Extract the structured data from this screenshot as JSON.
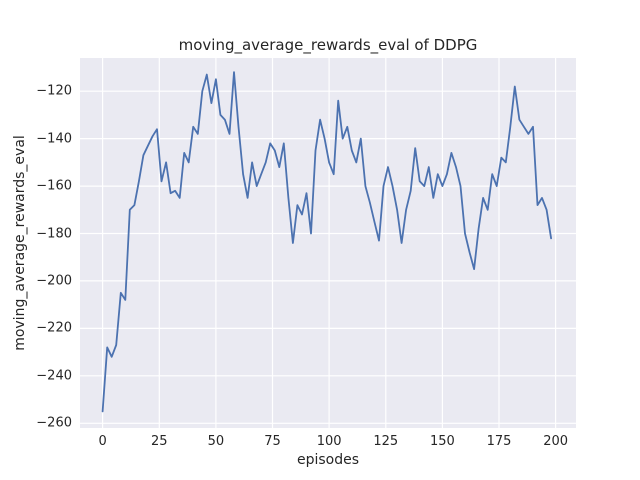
{
  "chart_data": {
    "type": "line",
    "title": "moving_average_rewards_eval of DDPG",
    "xlabel": "episodes",
    "ylabel": "moving_average_rewards_eval",
    "xlim": [
      -10,
      209
    ],
    "ylim": [
      -262,
      -106
    ],
    "xticks": [
      0,
      25,
      50,
      75,
      100,
      125,
      150,
      175,
      200
    ],
    "yticks": [
      -260,
      -240,
      -220,
      -200,
      -180,
      -160,
      -140,
      -120
    ],
    "grid": true,
    "legend": false,
    "style": "seaborn-darkgrid",
    "line_color": "#4c72b0",
    "plot_background_color": "#eaeaf2",
    "grid_color": "#ffffff",
    "text_color": "#262626",
    "series": [
      {
        "name": "moving_average_rewards_eval",
        "x": [
          0,
          2,
          4,
          6,
          8,
          10,
          12,
          14,
          16,
          18,
          20,
          22,
          24,
          26,
          28,
          30,
          32,
          34,
          36,
          38,
          40,
          42,
          44,
          46,
          48,
          50,
          52,
          54,
          56,
          58,
          60,
          62,
          64,
          66,
          68,
          70,
          72,
          74,
          76,
          78,
          80,
          82,
          84,
          86,
          88,
          90,
          92,
          94,
          96,
          98,
          100,
          102,
          104,
          106,
          108,
          110,
          112,
          114,
          116,
          118,
          120,
          122,
          124,
          126,
          128,
          130,
          132,
          134,
          136,
          138,
          140,
          142,
          144,
          146,
          148,
          150,
          152,
          154,
          156,
          158,
          160,
          162,
          164,
          166,
          168,
          170,
          172,
          174,
          176,
          178,
          180,
          182,
          184,
          186,
          188,
          190,
          192,
          194,
          196,
          198
        ],
        "y": [
          -255,
          -228,
          -232,
          -227,
          -205,
          -208,
          -170,
          -168,
          -158,
          -147,
          -143,
          -139,
          -136,
          -158,
          -150,
          -163,
          -162,
          -165,
          -146,
          -150,
          -135,
          -138,
          -120,
          -113,
          -125,
          -115,
          -130,
          -132,
          -138,
          -112,
          -135,
          -155,
          -165,
          -150,
          -160,
          -155,
          -150,
          -142,
          -145,
          -152,
          -142,
          -165,
          -184,
          -168,
          -172,
          -163,
          -180,
          -145,
          -132,
          -140,
          -150,
          -155,
          -124,
          -140,
          -135,
          -145,
          -150,
          -140,
          -160,
          -167,
          -175,
          -183,
          -160,
          -152,
          -160,
          -170,
          -184,
          -170,
          -162,
          -144,
          -158,
          -160,
          -152,
          -165,
          -155,
          -160,
          -155,
          -146,
          -152,
          -160,
          -180,
          -188,
          -195,
          -178,
          -165,
          -170,
          -155,
          -160,
          -148,
          -150,
          -135,
          -118,
          -132,
          -135,
          -138,
          -135,
          -168,
          -165,
          -170,
          -182
        ]
      }
    ]
  }
}
